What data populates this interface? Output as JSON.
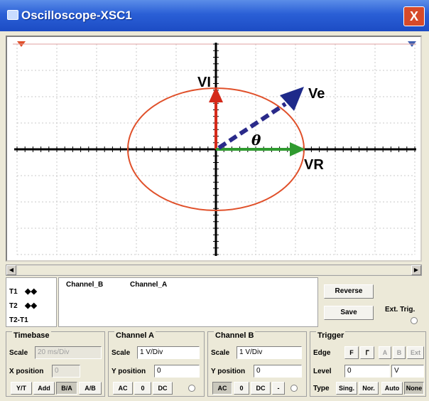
{
  "window": {
    "title": "Oscilloscope-XSC1",
    "close_glyph": "X"
  },
  "diagram": {
    "labels": {
      "vi": "VI",
      "ve": "Ve",
      "vr": "VR",
      "theta": "θ"
    },
    "colors": {
      "ellipse": "#e0502a",
      "vi_arrow": "#d42a1a",
      "vr_arrow": "#2f9a2f",
      "ve_arrow": "#2a2a8a",
      "axes": "#000000",
      "grid": "#c8c8c8"
    }
  },
  "cursors": {
    "t1": "T1",
    "t2": "T2",
    "t2t1": "T2-T1",
    "arrows": "◆◆"
  },
  "readout": {
    "col_b": "Channel_B",
    "col_a": "Channel_A"
  },
  "buttons": {
    "reverse": "Reverse",
    "save": "Save",
    "ext_trig": "Ext. Trig."
  },
  "timebase": {
    "title": "Timebase",
    "scale_label": "Scale",
    "scale_value": "20 ms/Div",
    "xpos_label": "X position",
    "xpos_value": "0",
    "modes": [
      "Y/T",
      "Add",
      "B/A",
      "A/B"
    ],
    "active_mode": "B/A"
  },
  "channel_a": {
    "title": "Channel A",
    "scale_label": "Scale",
    "scale_value": "1 V/Div",
    "ypos_label": "Y position",
    "ypos_value": "0",
    "coupling": [
      "AC",
      "0",
      "DC"
    ]
  },
  "channel_b": {
    "title": "Channel B",
    "scale_label": "Scale",
    "scale_value": "1 V/Div",
    "ypos_label": "Y position",
    "ypos_value": "0",
    "coupling": [
      "AC",
      "0",
      "DC",
      "-"
    ]
  },
  "trigger": {
    "title": "Trigger",
    "edge_label": "Edge",
    "edge_buttons": [
      "F",
      "ᒥ",
      "A",
      "B",
      "Ext"
    ],
    "level_label": "Level",
    "level_value": "0",
    "level_unit": "V",
    "type_label": "Type",
    "types": [
      "Sing.",
      "Nor.",
      "Auto",
      "None"
    ],
    "active_type": "None"
  }
}
